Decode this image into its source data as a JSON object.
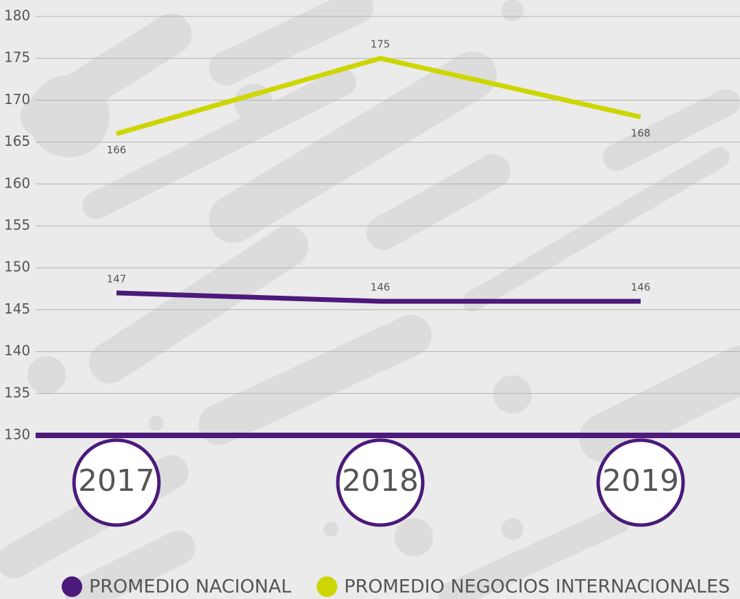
{
  "chart_data": {
    "type": "line",
    "categories": [
      "2017",
      "2018",
      "2019"
    ],
    "series": [
      {
        "name": "PROMEDIO NACIONAL",
        "color": "#4b1a7a",
        "values": [
          147,
          146,
          146
        ]
      },
      {
        "name": "PROMEDIO NEGOCIOS INTERNACIONALES",
        "color": "#cdd600",
        "values": [
          166,
          175,
          168
        ]
      }
    ],
    "ylim": [
      130,
      180
    ],
    "yticks": [
      130,
      135,
      140,
      145,
      150,
      155,
      160,
      165,
      170,
      175,
      180
    ],
    "grid": true,
    "legend": "bottom"
  }
}
